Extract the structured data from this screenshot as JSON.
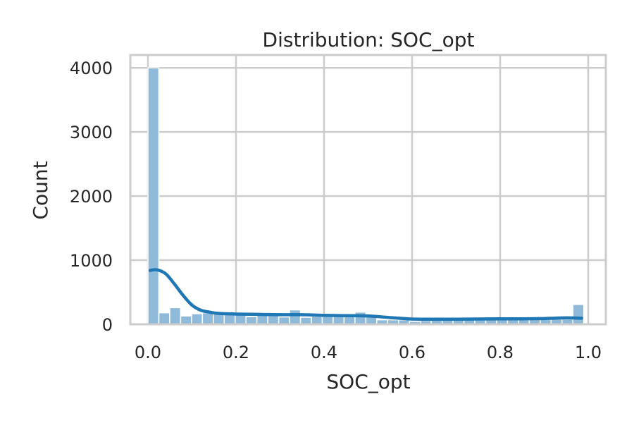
{
  "chart_data": {
    "type": "bar",
    "title": "Distribution: SOC_opt",
    "xlabel": "SOC_opt",
    "ylabel": "Count",
    "xlim": [
      -0.04,
      1.04
    ],
    "ylim": [
      0,
      4200
    ],
    "x_ticks": [
      0.0,
      0.2,
      0.4,
      0.6,
      0.8,
      1.0
    ],
    "x_tick_labels": [
      "0.0",
      "0.2",
      "0.4",
      "0.6",
      "0.8",
      "1.0"
    ],
    "y_ticks": [
      0,
      1000,
      2000,
      3000,
      4000
    ],
    "y_tick_labels": [
      "0",
      "1000",
      "2000",
      "3000",
      "4000"
    ],
    "grid": true,
    "bins": {
      "start": 0.0,
      "width": 0.02475,
      "counts": [
        4000,
        180,
        260,
        130,
        165,
        180,
        175,
        170,
        175,
        120,
        155,
        140,
        115,
        225,
        110,
        125,
        130,
        130,
        135,
        190,
        120,
        70,
        70,
        70,
        45,
        60,
        75,
        80,
        80,
        80,
        85,
        70,
        80,
        80,
        70,
        75,
        75,
        80,
        80,
        310
      ]
    },
    "kde": {
      "x": [
        0.005,
        0.02,
        0.04,
        0.06,
        0.08,
        0.1,
        0.12,
        0.14,
        0.16,
        0.2,
        0.25,
        0.3,
        0.35,
        0.4,
        0.45,
        0.5,
        0.55,
        0.6,
        0.65,
        0.7,
        0.75,
        0.8,
        0.85,
        0.9,
        0.95,
        0.985
      ],
      "y": [
        840,
        850,
        790,
        630,
        450,
        300,
        220,
        190,
        170,
        160,
        155,
        150,
        150,
        140,
        135,
        130,
        105,
        82,
        80,
        80,
        82,
        85,
        85,
        90,
        100,
        95
      ]
    },
    "colors": {
      "bar_fill": "#90bad9",
      "bar_edge": "#ffffff",
      "kde_line": "#1f77b4",
      "grid": "#cccccc",
      "frame": "#cccccc"
    }
  }
}
